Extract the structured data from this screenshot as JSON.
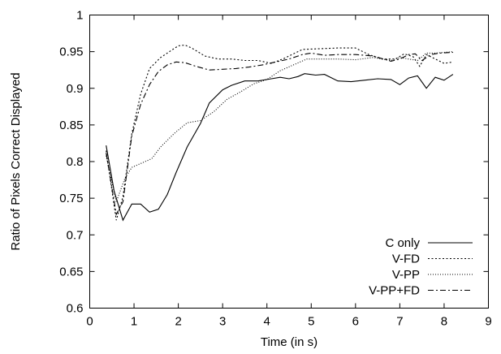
{
  "chart_data": {
    "type": "line",
    "title": "",
    "xlabel": "Time (in s)",
    "ylabel": "Ratio of Pixels Correct Displayed",
    "xlim": [
      0,
      9
    ],
    "ylim": [
      0.6,
      1
    ],
    "xticks": [
      "0",
      "1",
      "2",
      "3",
      "4",
      "5",
      "6",
      "7",
      "8",
      "9"
    ],
    "yticks": [
      "0.6",
      "0.65",
      "0.7",
      "0.75",
      "0.8",
      "0.85",
      "0.9",
      "0.95",
      "1"
    ],
    "grid": false,
    "legend_position": "bottom-right",
    "series": [
      {
        "name": "C only",
        "dash": "",
        "x": [
          0.37,
          0.55,
          0.75,
          0.95,
          1.15,
          1.35,
          1.55,
          1.75,
          1.95,
          2.2,
          2.5,
          2.7,
          3.0,
          3.2,
          3.5,
          3.8,
          4.1,
          4.3,
          4.5,
          4.7,
          4.85,
          5.1,
          5.3,
          5.6,
          5.9,
          6.2,
          6.5,
          6.8,
          7.0,
          7.2,
          7.4,
          7.6,
          7.8,
          8.0,
          8.2
        ],
        "y": [
          0.822,
          0.76,
          0.72,
          0.742,
          0.742,
          0.731,
          0.735,
          0.755,
          0.785,
          0.82,
          0.852,
          0.88,
          0.898,
          0.904,
          0.91,
          0.91,
          0.913,
          0.915,
          0.913,
          0.916,
          0.92,
          0.918,
          0.919,
          0.91,
          0.909,
          0.911,
          0.913,
          0.912,
          0.905,
          0.914,
          0.917,
          0.9,
          0.915,
          0.911,
          0.919
        ]
      },
      {
        "name": "V-FD",
        "dash": "2,2.5",
        "x": [
          0.37,
          0.6,
          0.75,
          0.95,
          1.15,
          1.35,
          1.6,
          1.8,
          2.0,
          2.15,
          2.3,
          2.6,
          2.9,
          3.2,
          3.5,
          3.8,
          4.1,
          4.4,
          4.8,
          5.2,
          5.6,
          6.0,
          6.3,
          6.6,
          6.9,
          7.1,
          7.3,
          7.45,
          7.6,
          7.8,
          8.0,
          8.2
        ],
        "y": [
          0.815,
          0.72,
          0.752,
          0.838,
          0.892,
          0.927,
          0.942,
          0.95,
          0.958,
          0.959,
          0.955,
          0.944,
          0.94,
          0.94,
          0.938,
          0.938,
          0.934,
          0.941,
          0.953,
          0.954,
          0.955,
          0.955,
          0.946,
          0.94,
          0.94,
          0.947,
          0.943,
          0.93,
          0.946,
          0.94,
          0.934,
          0.936
        ]
      },
      {
        "name": "V-PP",
        "dash": "1,2",
        "x": [
          0.37,
          0.6,
          0.8,
          0.95,
          1.1,
          1.4,
          1.6,
          1.9,
          2.2,
          2.5,
          2.8,
          3.1,
          3.4,
          3.7,
          4.0,
          4.3,
          4.6,
          4.9,
          5.2,
          5.6,
          6.0,
          6.4,
          6.8,
          7.0,
          7.2,
          7.4,
          7.6,
          7.8,
          8.0,
          8.2
        ],
        "y": [
          0.808,
          0.745,
          0.778,
          0.792,
          0.796,
          0.804,
          0.82,
          0.838,
          0.853,
          0.856,
          0.868,
          0.885,
          0.895,
          0.906,
          0.912,
          0.924,
          0.932,
          0.94,
          0.94,
          0.94,
          0.939,
          0.942,
          0.938,
          0.942,
          0.94,
          0.938,
          0.948,
          0.948,
          0.949,
          0.95
        ]
      },
      {
        "name": "V-PP+FD",
        "dash": "7,3,2,3",
        "x": [
          0.37,
          0.6,
          0.75,
          0.95,
          1.15,
          1.35,
          1.55,
          1.75,
          1.95,
          2.15,
          2.4,
          2.7,
          3.0,
          3.3,
          3.6,
          3.9,
          4.2,
          4.5,
          4.8,
          5.0,
          5.3,
          5.6,
          6.0,
          6.4,
          6.8,
          7.0,
          7.2,
          7.35,
          7.5,
          7.7,
          7.9,
          8.2
        ],
        "y": [
          0.812,
          0.728,
          0.745,
          0.835,
          0.878,
          0.905,
          0.923,
          0.932,
          0.936,
          0.935,
          0.93,
          0.925,
          0.926,
          0.927,
          0.929,
          0.932,
          0.936,
          0.94,
          0.946,
          0.948,
          0.945,
          0.946,
          0.946,
          0.944,
          0.937,
          0.94,
          0.946,
          0.947,
          0.938,
          0.946,
          0.948,
          0.949
        ]
      }
    ]
  }
}
